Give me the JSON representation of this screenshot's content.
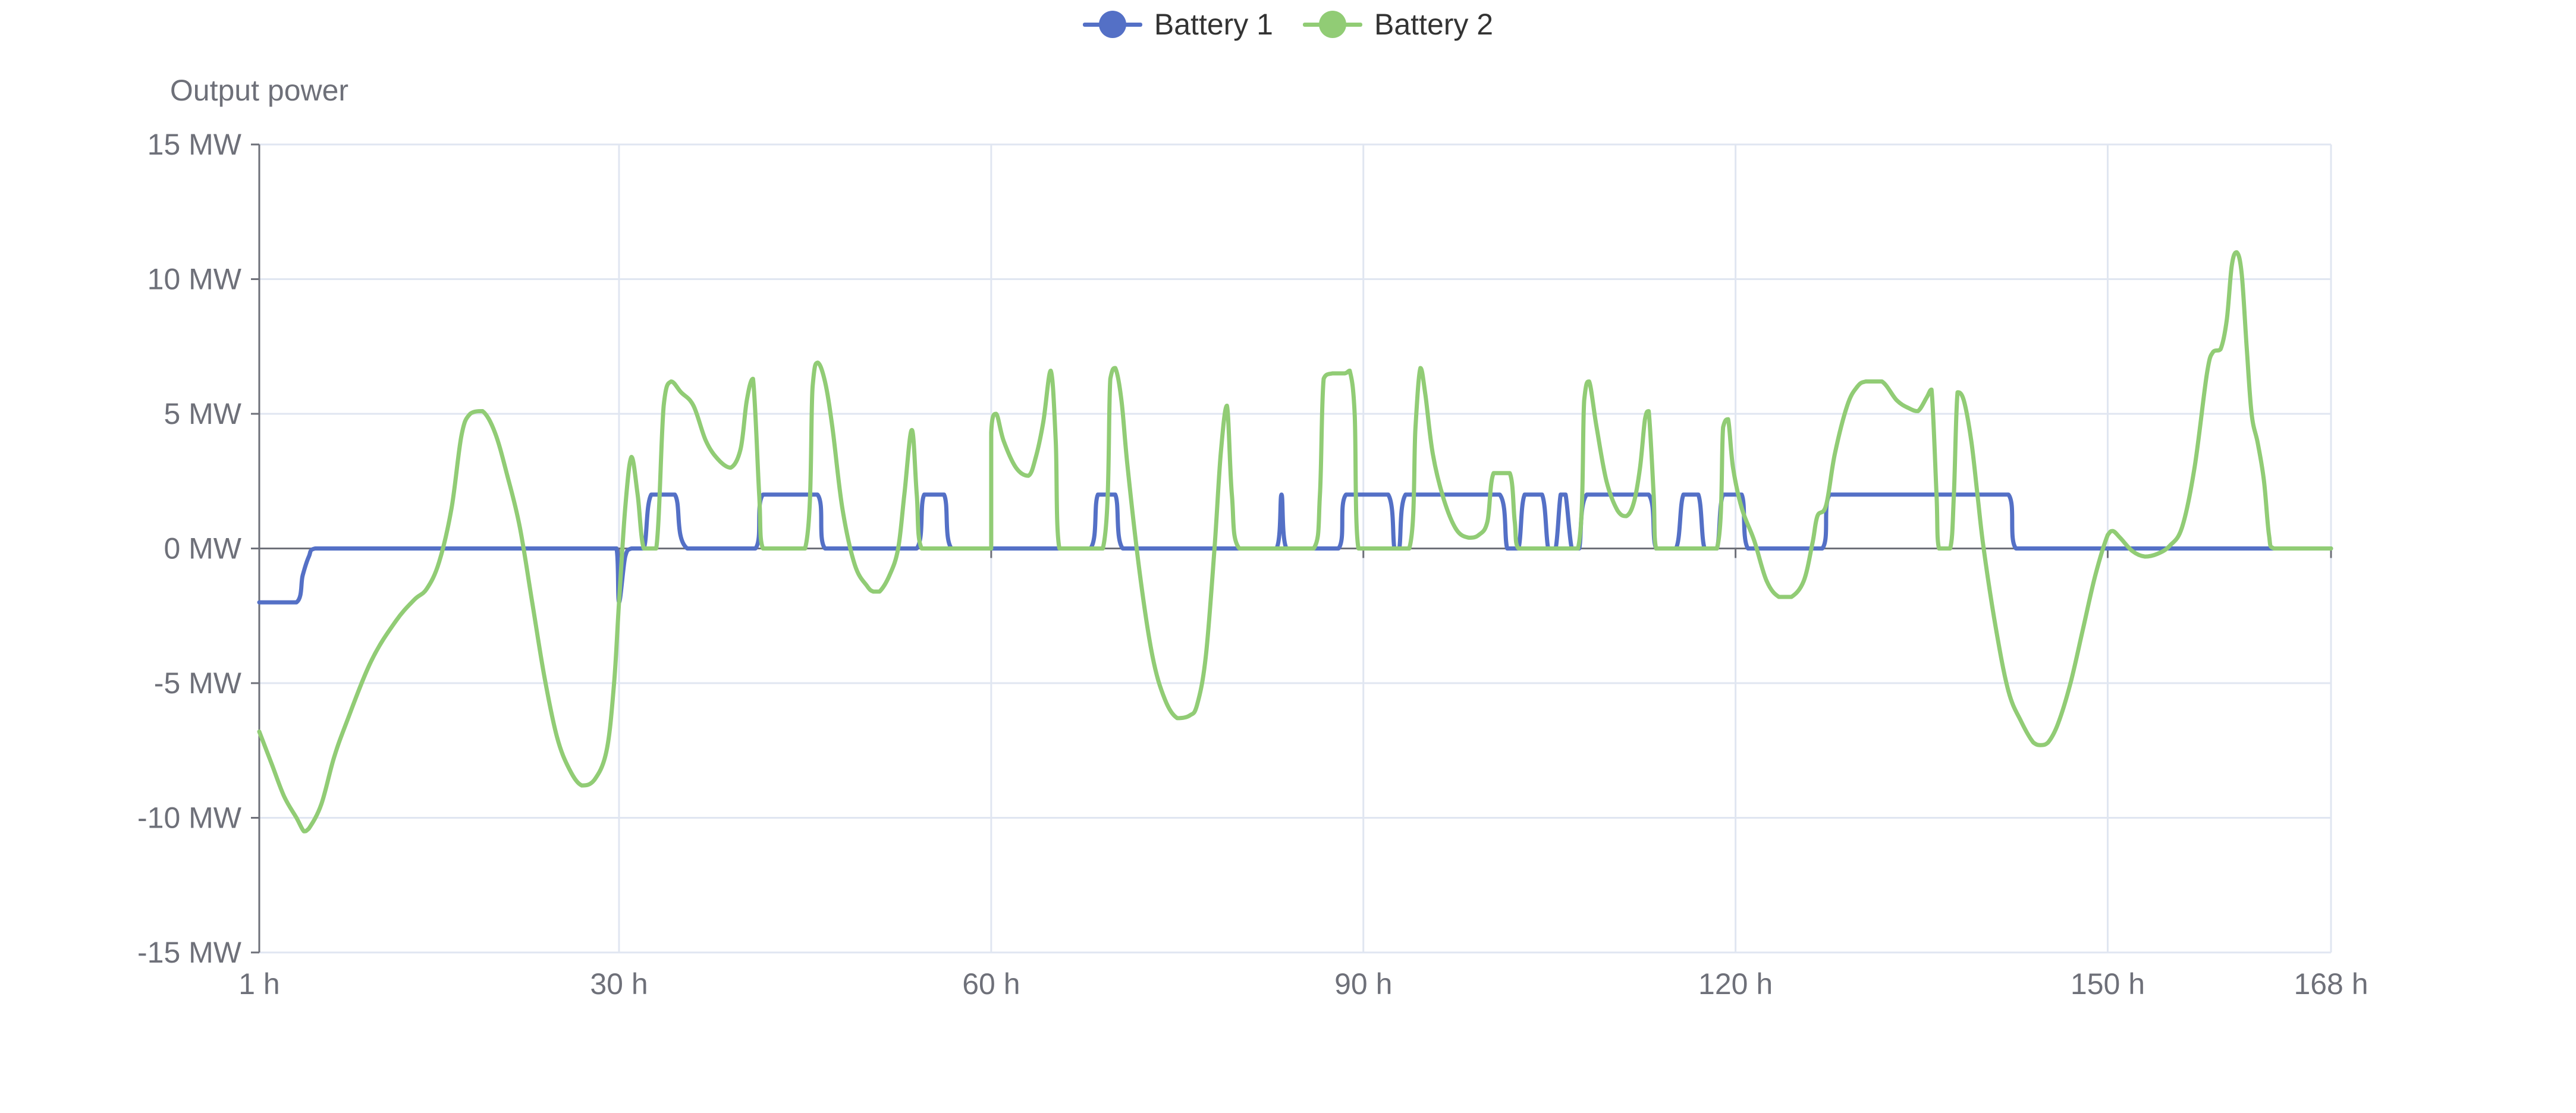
{
  "chart_data": {
    "type": "line",
    "ylabel": "Output power",
    "xlabel": "",
    "x_unit": "h",
    "y_unit": "MW",
    "xlim": [
      1,
      168
    ],
    "ylim": [
      -15,
      15
    ],
    "x_ticks": [
      "1 h",
      "30 h",
      "60 h",
      "90 h",
      "120 h",
      "150 h",
      "168 h"
    ],
    "y_ticks": [
      "15 MW",
      "10 MW",
      "5 MW",
      "0 MW",
      "-5 MW",
      "-10 MW",
      "-15 MW"
    ],
    "legend_position": "top-center",
    "grid": true,
    "series": [
      {
        "name": "Battery 1",
        "color": "#5470c6",
        "points": [
          [
            1,
            -2
          ],
          [
            4,
            -2
          ],
          [
            4.5,
            -1
          ],
          [
            5,
            -0.3
          ],
          [
            5.5,
            0
          ],
          [
            29,
            0
          ],
          [
            29.8,
            0
          ],
          [
            30,
            -2
          ],
          [
            30.5,
            -0.3
          ],
          [
            31,
            0
          ],
          [
            32,
            0
          ],
          [
            32.6,
            2
          ],
          [
            34.5,
            2
          ],
          [
            35.5,
            0
          ],
          [
            41,
            0
          ],
          [
            41.6,
            2
          ],
          [
            46,
            2
          ],
          [
            46.6,
            0
          ],
          [
            54,
            0
          ],
          [
            54.6,
            2
          ],
          [
            56.2,
            2
          ],
          [
            56.8,
            0
          ],
          [
            68,
            0
          ],
          [
            68.6,
            2
          ],
          [
            70,
            2
          ],
          [
            70.6,
            0
          ],
          [
            83,
            0
          ],
          [
            83.4,
            2
          ],
          [
            83.8,
            0
          ],
          [
            88,
            0
          ],
          [
            88.6,
            2
          ],
          [
            92,
            2
          ],
          [
            92.5,
            0
          ],
          [
            92.9,
            0
          ],
          [
            93.4,
            2
          ],
          [
            101,
            2
          ],
          [
            101.6,
            0
          ],
          [
            102.5,
            0
          ],
          [
            103,
            2
          ],
          [
            104.4,
            2
          ],
          [
            104.9,
            0
          ],
          [
            105.5,
            0
          ],
          [
            105.9,
            2
          ],
          [
            106.3,
            2
          ],
          [
            106.8,
            0
          ],
          [
            107.4,
            0
          ],
          [
            108,
            2
          ],
          [
            113,
            2
          ],
          [
            113.6,
            0
          ],
          [
            115.2,
            0
          ],
          [
            115.8,
            2
          ],
          [
            117,
            2
          ],
          [
            117.5,
            0
          ],
          [
            118.5,
            0
          ],
          [
            119,
            2
          ],
          [
            120.5,
            2
          ],
          [
            121,
            0
          ],
          [
            127,
            0
          ],
          [
            127.6,
            2
          ],
          [
            142,
            2
          ],
          [
            142.6,
            0
          ],
          [
            168,
            0
          ]
        ]
      },
      {
        "name": "Battery 2",
        "color": "#91cc75",
        "points": [
          [
            1,
            -6.8
          ],
          [
            2,
            -8
          ],
          [
            3,
            -9.2
          ],
          [
            4,
            -10
          ],
          [
            4.6,
            -10.5
          ],
          [
            5,
            -10.4
          ],
          [
            6,
            -9.5
          ],
          [
            7,
            -7.8
          ],
          [
            8,
            -6.5
          ],
          [
            10,
            -4.2
          ],
          [
            12,
            -2.7
          ],
          [
            13.5,
            -1.9
          ],
          [
            14.5,
            -1.5
          ],
          [
            15.5,
            -0.5
          ],
          [
            16.5,
            1.5
          ],
          [
            17.3,
            4.2
          ],
          [
            18,
            5
          ],
          [
            19,
            5.1
          ],
          [
            20,
            4.3
          ],
          [
            21,
            2.7
          ],
          [
            22,
            0.8
          ],
          [
            23,
            -2
          ],
          [
            24,
            -4.8
          ],
          [
            25,
            -7
          ],
          [
            26,
            -8.2
          ],
          [
            27,
            -8.8
          ],
          [
            28,
            -8.6
          ],
          [
            29,
            -7.5
          ],
          [
            29.6,
            -5
          ],
          [
            30,
            -2
          ],
          [
            30.5,
            1.5
          ],
          [
            31,
            3.4
          ],
          [
            31.5,
            2
          ],
          [
            32,
            0
          ],
          [
            33,
            0
          ],
          [
            33.6,
            5.3
          ],
          [
            34.2,
            6.2
          ],
          [
            35,
            5.8
          ],
          [
            36,
            5.3
          ],
          [
            37,
            4
          ],
          [
            38,
            3.3
          ],
          [
            39,
            3
          ],
          [
            39.8,
            3.7
          ],
          [
            40.3,
            5.5
          ],
          [
            40.8,
            6.3
          ],
          [
            41.3,
            2
          ],
          [
            41.6,
            0
          ],
          [
            45,
            0
          ],
          [
            45.6,
            6
          ],
          [
            46,
            6.9
          ],
          [
            46.6,
            6.2
          ],
          [
            47.2,
            4.5
          ],
          [
            48,
            1.5
          ],
          [
            49,
            -0.6
          ],
          [
            50,
            -1.4
          ],
          [
            50.5,
            -1.6
          ],
          [
            51,
            -1.6
          ],
          [
            51.8,
            -1
          ],
          [
            52.5,
            0
          ],
          [
            53,
            2
          ],
          [
            53.6,
            4.4
          ],
          [
            54,
            2
          ],
          [
            54.4,
            0
          ],
          [
            60,
            0
          ],
          [
            60,
            4.3
          ],
          [
            60.4,
            5
          ],
          [
            61,
            4
          ],
          [
            62,
            3
          ],
          [
            63,
            2.7
          ],
          [
            63.6,
            3.4
          ],
          [
            64.2,
            4.7
          ],
          [
            64.8,
            6.6
          ],
          [
            65.2,
            4
          ],
          [
            65.5,
            0
          ],
          [
            69,
            0
          ],
          [
            69.6,
            6.3
          ],
          [
            70,
            6.7
          ],
          [
            70.5,
            5.5
          ],
          [
            71,
            3
          ],
          [
            72,
            -1
          ],
          [
            73,
            -4
          ],
          [
            74,
            -5.6
          ],
          [
            75,
            -6.3
          ],
          [
            76,
            -6.2
          ],
          [
            76.6,
            -5.8
          ],
          [
            77.3,
            -4
          ],
          [
            78,
            0
          ],
          [
            78.5,
            3.5
          ],
          [
            79,
            5.3
          ],
          [
            79.4,
            2
          ],
          [
            80,
            0
          ],
          [
            86,
            0
          ],
          [
            86.5,
            2
          ],
          [
            86.8,
            6.3
          ],
          [
            87.5,
            6.5
          ],
          [
            88.5,
            6.5
          ],
          [
            88.9,
            6.6
          ],
          [
            89.3,
            5
          ],
          [
            89.6,
            0
          ],
          [
            93.7,
            0
          ],
          [
            94.2,
            4.5
          ],
          [
            94.6,
            6.7
          ],
          [
            95,
            5.7
          ],
          [
            95.6,
            3.5
          ],
          [
            96.5,
            1.8
          ],
          [
            97.5,
            0.7
          ],
          [
            98.5,
            0.4
          ],
          [
            99.3,
            0.5
          ],
          [
            100,
            1
          ],
          [
            100.5,
            2.8
          ],
          [
            101.8,
            2.8
          ],
          [
            102.2,
            1
          ],
          [
            102.5,
            0
          ],
          [
            107.3,
            0
          ],
          [
            107.8,
            5.5
          ],
          [
            108.2,
            6.2
          ],
          [
            108.8,
            4.5
          ],
          [
            109.6,
            2.5
          ],
          [
            110.5,
            1.4
          ],
          [
            111.2,
            1.2
          ],
          [
            111.8,
            1.7
          ],
          [
            112.3,
            3
          ],
          [
            112.7,
            4.8
          ],
          [
            113,
            5.1
          ],
          [
            113.4,
            2
          ],
          [
            113.6,
            0
          ],
          [
            118.5,
            0
          ],
          [
            119,
            4.5
          ],
          [
            119.4,
            4.8
          ],
          [
            119.8,
            3
          ],
          [
            120.5,
            1.5
          ],
          [
            121.5,
            0.3
          ],
          [
            122.5,
            -1.2
          ],
          [
            123.5,
            -1.8
          ],
          [
            124.5,
            -1.8
          ],
          [
            125.5,
            -1.2
          ],
          [
            126.2,
            0.2
          ],
          [
            126.6,
            1.2
          ],
          [
            127.3,
            1.6
          ],
          [
            128,
            3.5
          ],
          [
            129,
            5.3
          ],
          [
            129.8,
            6
          ],
          [
            130.5,
            6.2
          ],
          [
            131.8,
            6.2
          ],
          [
            133,
            5.5
          ],
          [
            134,
            5.2
          ],
          [
            134.7,
            5.1
          ],
          [
            135.4,
            5.6
          ],
          [
            135.8,
            5.9
          ],
          [
            136.2,
            2
          ],
          [
            136.4,
            0
          ],
          [
            137.3,
            0
          ],
          [
            137.6,
            2
          ],
          [
            137.9,
            5.8
          ],
          [
            138.4,
            5.5
          ],
          [
            139,
            4
          ],
          [
            139.5,
            2
          ],
          [
            140,
            0
          ],
          [
            141,
            -3
          ],
          [
            142,
            -5.3
          ],
          [
            143,
            -6.4
          ],
          [
            144,
            -7.2
          ],
          [
            144.6,
            -7.3
          ],
          [
            145.2,
            -7.2
          ],
          [
            146,
            -6.5
          ],
          [
            147,
            -5
          ],
          [
            148,
            -3
          ],
          [
            149,
            -1
          ],
          [
            150,
            0.5
          ],
          [
            150.4,
            0.65
          ],
          [
            151,
            0.4
          ],
          [
            152,
            -0.1
          ],
          [
            153,
            -0.3
          ],
          [
            154,
            -0.2
          ],
          [
            155,
            0.1
          ],
          [
            156,
            0.8
          ],
          [
            157,
            3
          ],
          [
            158,
            6.5
          ],
          [
            158.5,
            7.3
          ],
          [
            159.1,
            7.4
          ],
          [
            159.6,
            8.5
          ],
          [
            160,
            10.5
          ],
          [
            160.4,
            11
          ],
          [
            160.8,
            10.2
          ],
          [
            161.2,
            7.5
          ],
          [
            161.6,
            5
          ],
          [
            162.1,
            3.9
          ],
          [
            162.6,
            2.5
          ],
          [
            163,
            0.5
          ],
          [
            163.4,
            0
          ],
          [
            168,
            0
          ]
        ]
      }
    ]
  }
}
